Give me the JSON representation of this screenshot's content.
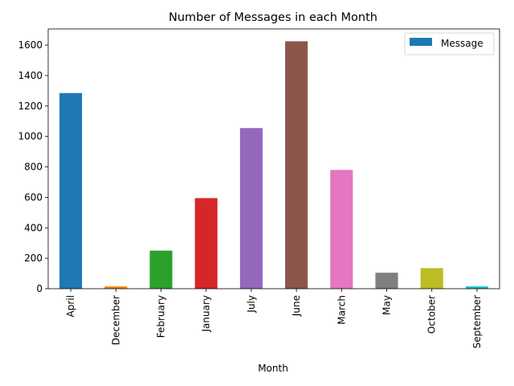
{
  "chart_data": {
    "type": "bar",
    "title": "Number of Messages in each Month",
    "xlabel": "Month",
    "ylabel": "",
    "categories": [
      "April",
      "December",
      "February",
      "January",
      "July",
      "June",
      "March",
      "May",
      "October",
      "September"
    ],
    "series": [
      {
        "name": "Message",
        "values": [
          1285,
          15,
          250,
          595,
          1055,
          1625,
          780,
          105,
          135,
          15
        ]
      }
    ],
    "bar_colors": [
      "#1f77b4",
      "#ff7f0e",
      "#2ca02c",
      "#d62728",
      "#9467bd",
      "#8c564b",
      "#e377c2",
      "#7f7f7f",
      "#bcbd22",
      "#17becf"
    ],
    "legend_color": "#1f77b4",
    "ylim": [
      0,
      1706
    ],
    "yticks": [
      0,
      200,
      400,
      600,
      800,
      1000,
      1200,
      1400,
      1600
    ],
    "legend_position": "upper right",
    "grid": false
  }
}
